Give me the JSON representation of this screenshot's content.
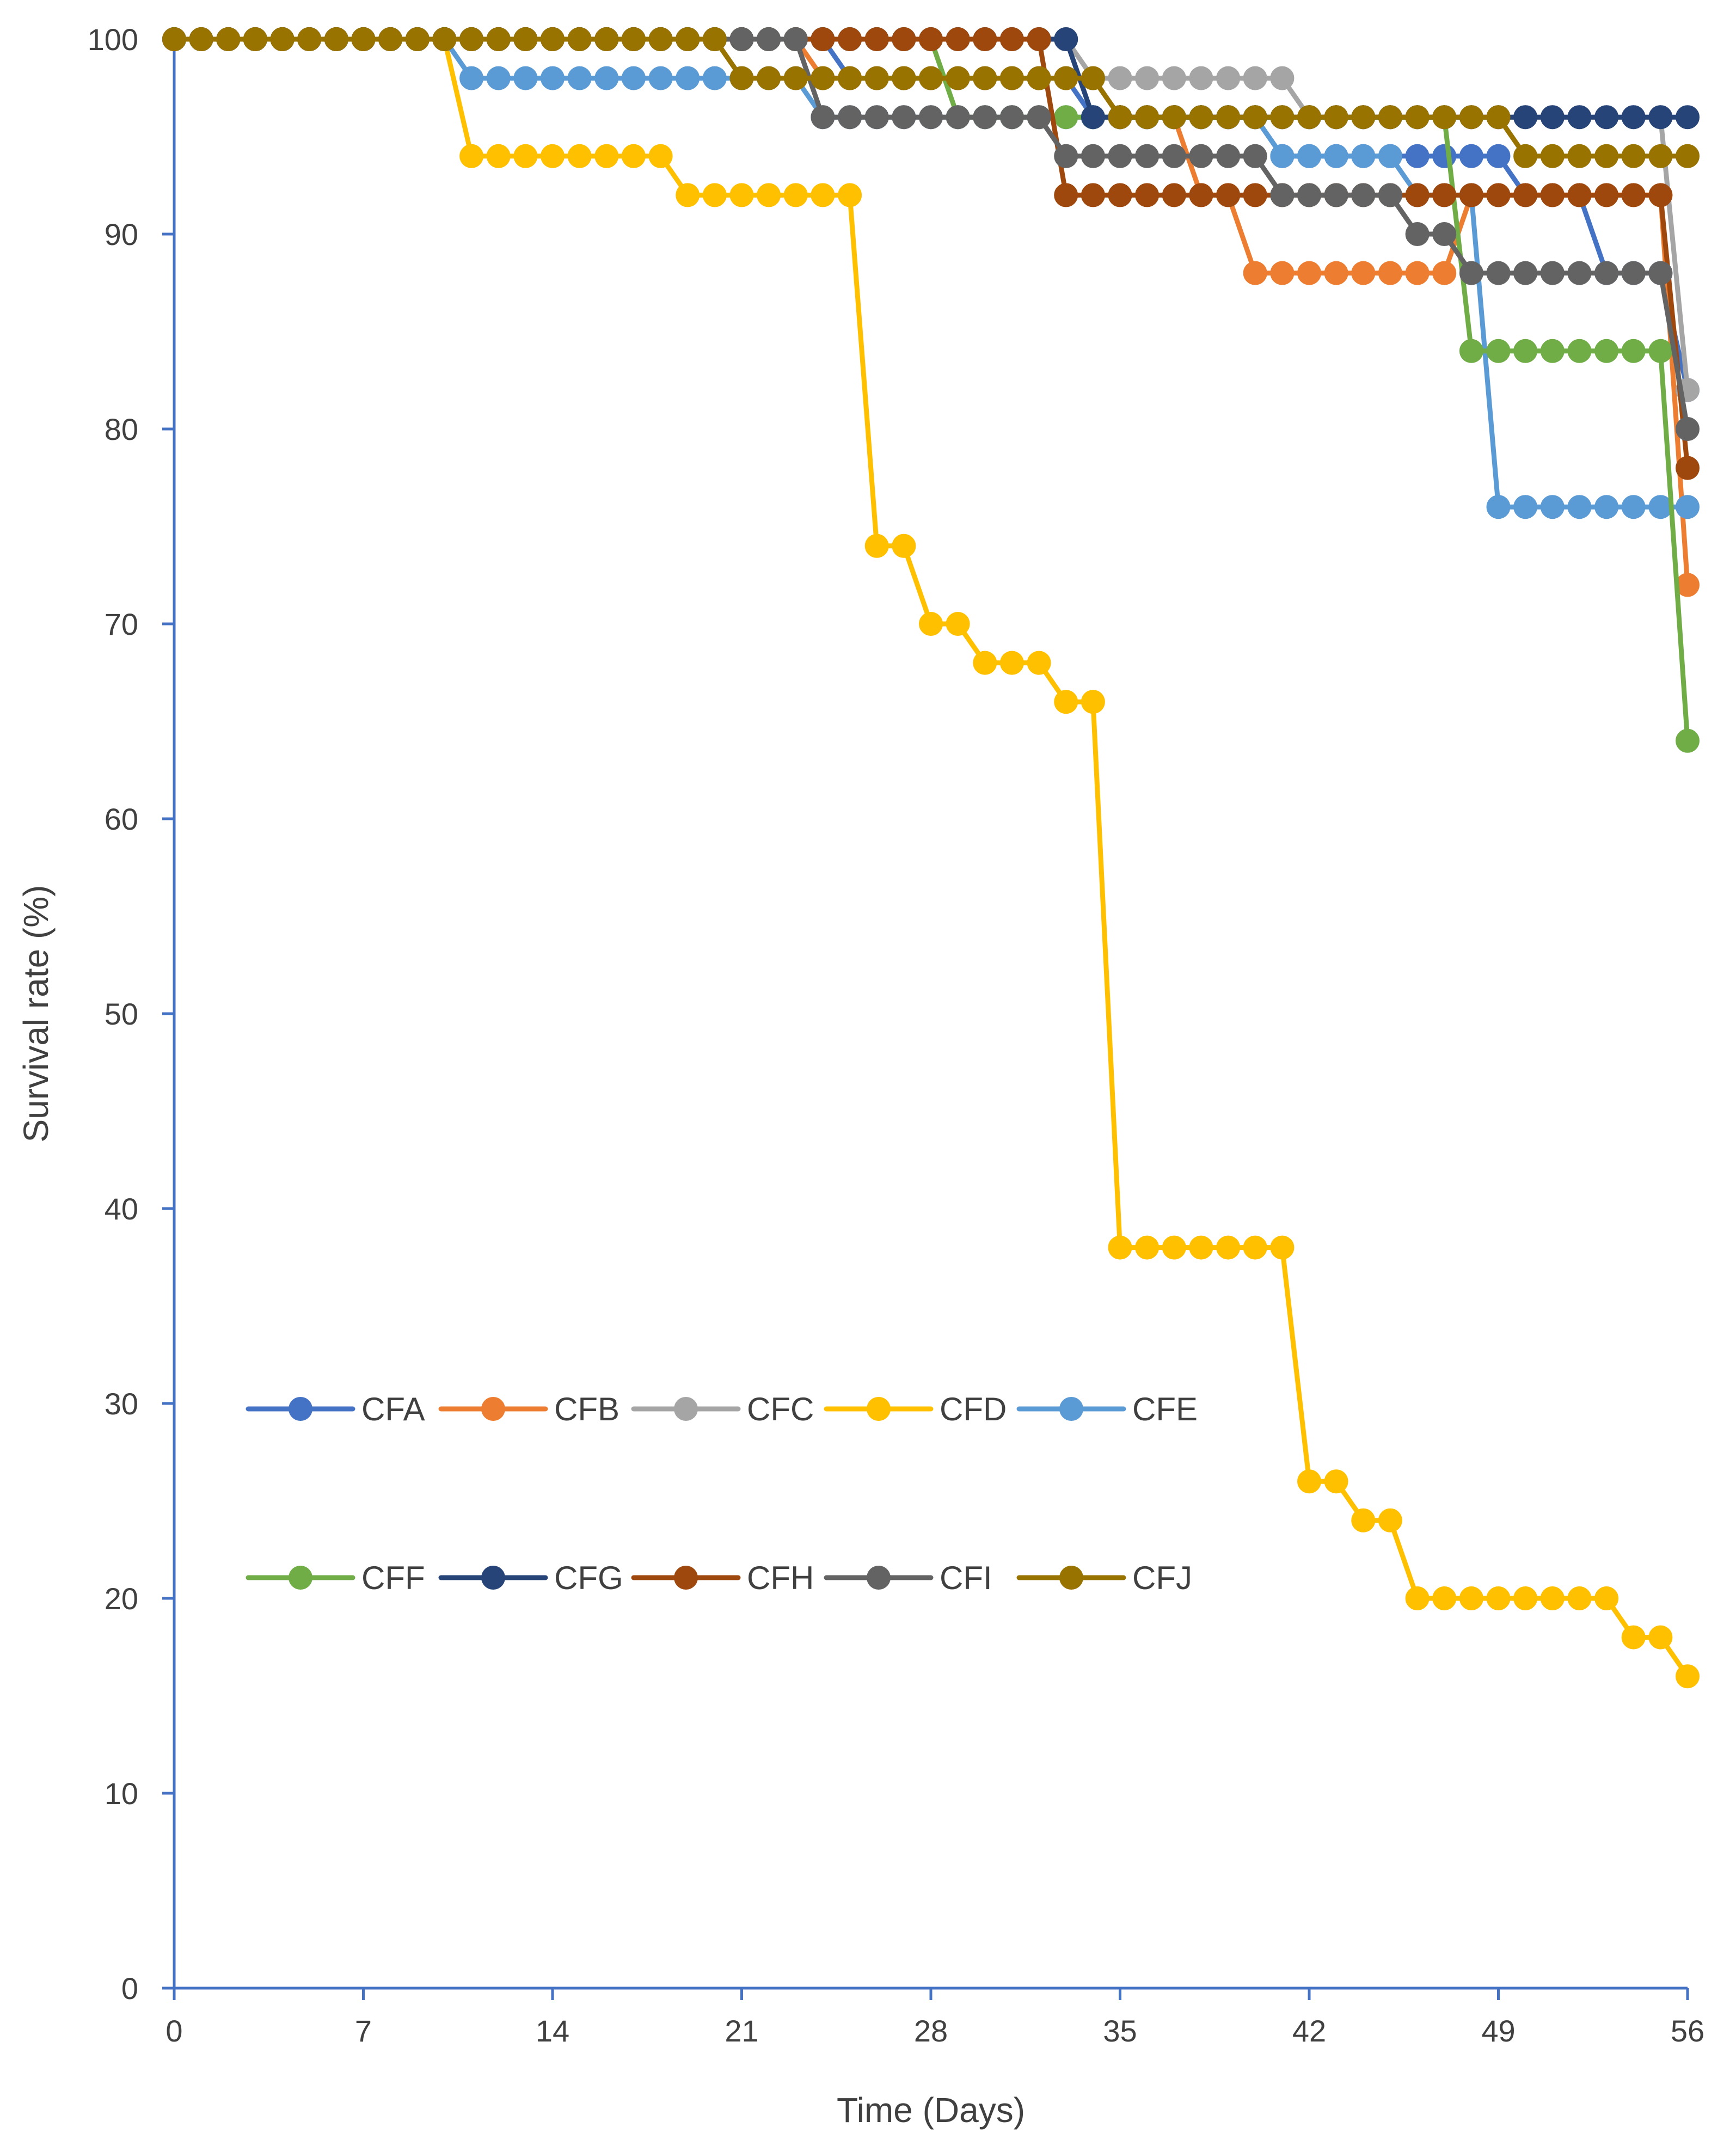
{
  "chart_data": {
    "type": "line",
    "title": "",
    "xlabel": "Time (Days)",
    "ylabel": "Survival rate (%)",
    "xlim": [
      0,
      56
    ],
    "ylim": [
      0,
      100
    ],
    "xticks": [
      0,
      7,
      14,
      21,
      28,
      35,
      42,
      49,
      56
    ],
    "yticks": [
      0,
      10,
      20,
      30,
      40,
      50,
      60,
      70,
      80,
      90,
      100
    ],
    "grid": false,
    "legend_position": "center-left, two rows",
    "legend_rows": [
      [
        "CFA",
        "CFB",
        "CFC",
        "CFD",
        "CFE"
      ],
      [
        "CFF",
        "CFG",
        "CFH",
        "CFI",
        "CFJ"
      ]
    ],
    "series": [
      {
        "name": "CFA",
        "color": "#4472C4",
        "breaks": [
          [
            25,
            98
          ],
          [
            34,
            96
          ],
          [
            41,
            94
          ],
          [
            50,
            92
          ],
          [
            53,
            88
          ],
          [
            56,
            82
          ]
        ]
      },
      {
        "name": "CFB",
        "color": "#ED7D31",
        "breaks": [
          [
            24,
            98
          ],
          [
            35,
            96
          ],
          [
            38,
            92
          ],
          [
            40,
            88
          ],
          [
            48,
            92
          ],
          [
            56,
            72
          ]
        ]
      },
      {
        "name": "CFC",
        "color": "#A5A5A5",
        "breaks": [
          [
            34,
            98
          ],
          [
            42,
            96
          ],
          [
            56,
            82
          ]
        ]
      },
      {
        "name": "CFD",
        "color": "#FFC000",
        "breaks": [
          [
            11,
            94
          ],
          [
            19,
            92
          ],
          [
            26,
            74
          ],
          [
            28,
            70
          ],
          [
            30,
            68
          ],
          [
            33,
            66
          ],
          [
            35,
            38
          ],
          [
            42,
            26
          ],
          [
            44,
            24
          ],
          [
            46,
            20
          ],
          [
            54,
            18
          ],
          [
            56,
            16
          ]
        ]
      },
      {
        "name": "CFE",
        "color": "#5B9BD5",
        "breaks": [
          [
            11,
            98
          ],
          [
            21,
            98
          ],
          [
            24,
            96
          ],
          [
            41,
            94
          ],
          [
            46,
            92
          ],
          [
            49,
            76
          ]
        ]
      },
      {
        "name": "CFF",
        "color": "#70AD47",
        "breaks": [
          [
            29,
            96
          ],
          [
            48,
            84
          ],
          [
            56,
            64
          ]
        ]
      },
      {
        "name": "CFG",
        "color": "#264478",
        "breaks": [
          [
            34,
            96
          ],
          [
            50,
            96
          ]
        ]
      },
      {
        "name": "CFH",
        "color": "#9E480E",
        "breaks": [
          [
            33,
            92
          ],
          [
            56,
            78
          ]
        ]
      },
      {
        "name": "CFI",
        "color": "#636363",
        "breaks": [
          [
            24,
            96
          ],
          [
            33,
            94
          ],
          [
            41,
            92
          ],
          [
            46,
            90
          ],
          [
            48,
            88
          ],
          [
            56,
            80
          ]
        ]
      },
      {
        "name": "CFJ",
        "color": "#997300",
        "breaks": [
          [
            21,
            98
          ],
          [
            35,
            96
          ],
          [
            50,
            94
          ]
        ]
      }
    ]
  }
}
